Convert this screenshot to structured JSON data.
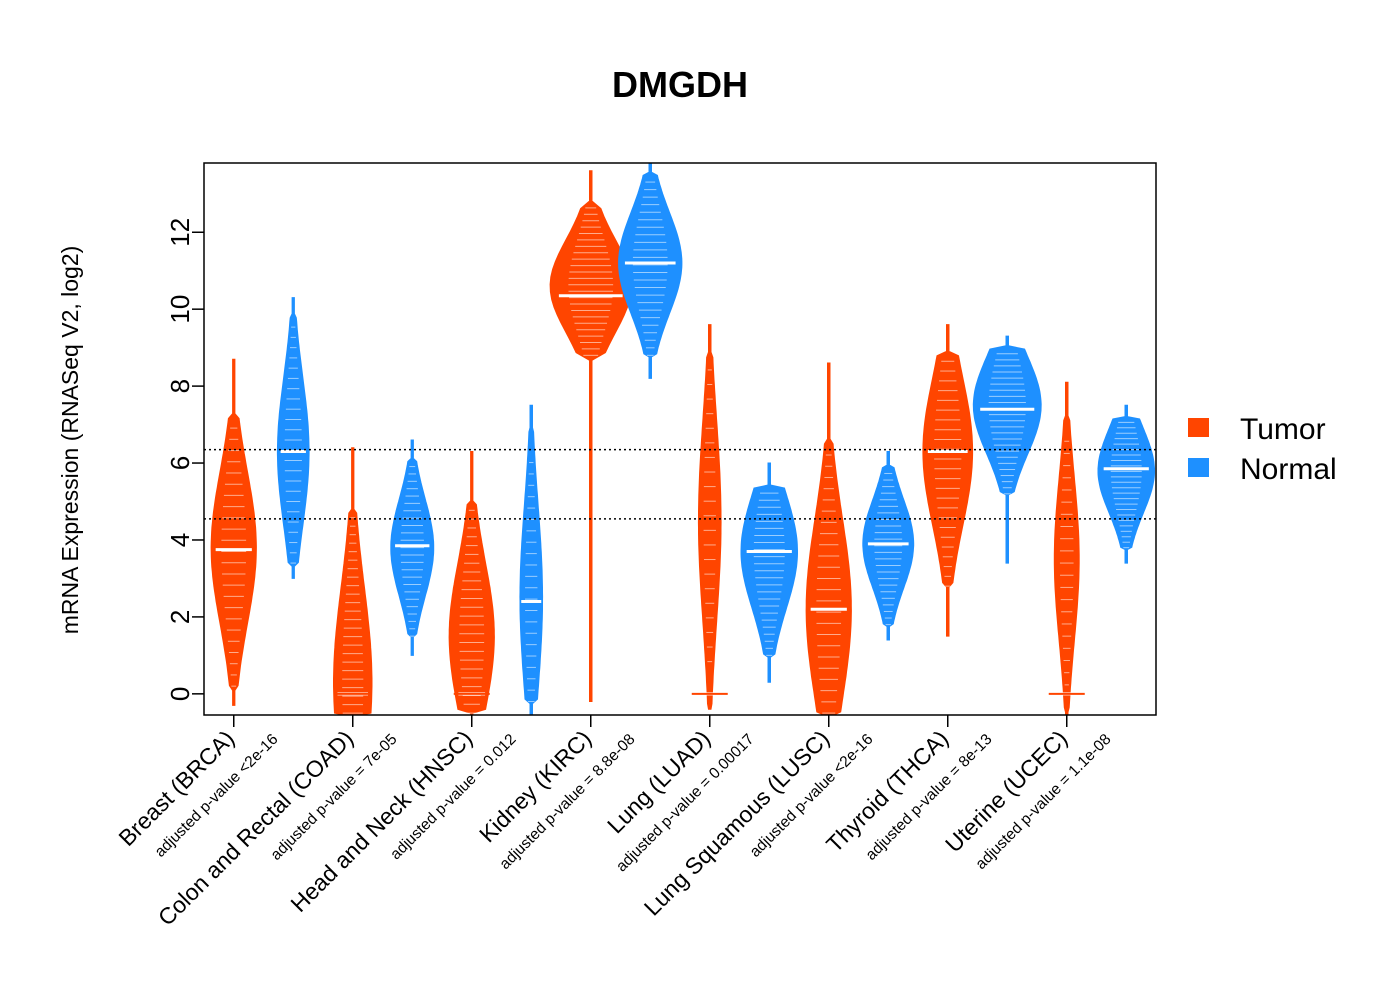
{
  "chart_data": {
    "type": "violin",
    "title": "DMGDH",
    "xlabel": "",
    "ylabel": "mRNA Expression (RNASeq V2, log2)",
    "ylim": [
      -0.55,
      13.8
    ],
    "yticks": [
      0,
      2,
      4,
      6,
      8,
      10,
      12
    ],
    "reference_lines": [
      6.35,
      4.55
    ],
    "grid": false,
    "legend": {
      "position": "right",
      "entries": [
        "Tumor",
        "Normal"
      ]
    },
    "colors": {
      "Tumor": "#ff4500",
      "Normal": "#1e90ff"
    },
    "categories": [
      "Breast (BRCA)",
      "Colon and Rectal (COAD)",
      "Head and Neck (HNSC)",
      "Kidney (KIRC)",
      "Lung (LUAD)",
      "Lung Squamous (LUSC)",
      "Thyroid (THCA)",
      "Uterine (UCEC)"
    ],
    "pvalues": [
      "adjusted p-value <2e-16",
      "adjusted p-value = 7e-05",
      "adjusted p-value = 0.012",
      "adjusted p-value = 8.8e-08",
      "adjusted p-value = 0.00017",
      "adjusted p-value <2e-16",
      "adjusted p-value = 8e-13",
      "adjusted p-value = 1.1e-08"
    ],
    "series": [
      {
        "name": "Tumor",
        "medians": [
          3.75,
          0.0,
          0.0,
          10.35,
          0.0,
          2.2,
          6.3,
          0.0
        ],
        "distributions": [
          {
            "min": -0.3,
            "max": 8.7,
            "bodyLow": 0.2,
            "bodyHigh": 7.2,
            "peak": 3.8,
            "width": 0.4
          },
          {
            "min": -0.6,
            "max": 6.4,
            "bodyLow": -0.5,
            "bodyHigh": 4.8,
            "peak": 0.3,
            "width": 0.34
          },
          {
            "min": -0.6,
            "max": 6.3,
            "bodyLow": -0.5,
            "bodyHigh": 5.0,
            "peak": 1.5,
            "width": 0.4
          },
          {
            "min": -0.2,
            "max": 13.6,
            "bodyLow": 8.8,
            "bodyHigh": 12.8,
            "peak": 10.6,
            "width": 0.72
          },
          {
            "min": -0.4,
            "max": 9.6,
            "bodyLow": -0.3,
            "bodyHigh": 8.8,
            "peak": 4.5,
            "width": 0.2
          },
          {
            "min": -0.6,
            "max": 8.6,
            "bodyLow": -0.5,
            "bodyHigh": 6.5,
            "peak": 2.2,
            "width": 0.4
          },
          {
            "min": 1.5,
            "max": 9.6,
            "bodyLow": 2.8,
            "bodyHigh": 8.9,
            "peak": 6.3,
            "width": 0.44
          },
          {
            "min": -0.6,
            "max": 8.1,
            "bodyLow": -0.4,
            "bodyHigh": 7.2,
            "peak": 3.5,
            "width": 0.22
          }
        ]
      },
      {
        "name": "Normal",
        "medians": [
          6.3,
          3.85,
          2.4,
          11.2,
          3.7,
          3.9,
          7.4,
          5.85
        ],
        "distributions": [
          {
            "min": 3.0,
            "max": 10.3,
            "bodyLow": 3.4,
            "bodyHigh": 9.8,
            "peak": 6.3,
            "width": 0.28
          },
          {
            "min": 1.0,
            "max": 6.6,
            "bodyLow": 1.5,
            "bodyHigh": 6.1,
            "peak": 3.8,
            "width": 0.38
          },
          {
            "min": -0.6,
            "max": 7.5,
            "bodyLow": -0.2,
            "bodyHigh": 6.9,
            "peak": 2.5,
            "width": 0.2
          },
          {
            "min": 8.2,
            "max": 13.8,
            "bodyLow": 8.8,
            "bodyHigh": 13.5,
            "peak": 11.2,
            "width": 0.56
          },
          {
            "min": 0.3,
            "max": 6.0,
            "bodyLow": 1.0,
            "bodyHigh": 5.4,
            "peak": 3.7,
            "width": 0.5
          },
          {
            "min": 1.4,
            "max": 6.3,
            "bodyLow": 1.8,
            "bodyHigh": 5.9,
            "peak": 3.9,
            "width": 0.45
          },
          {
            "min": 3.4,
            "max": 9.3,
            "bodyLow": 5.2,
            "bodyHigh": 9.0,
            "peak": 7.5,
            "width": 0.6
          },
          {
            "min": 3.4,
            "max": 7.5,
            "bodyLow": 3.8,
            "bodyHigh": 7.2,
            "peak": 5.8,
            "width": 0.5
          }
        ]
      }
    ]
  }
}
